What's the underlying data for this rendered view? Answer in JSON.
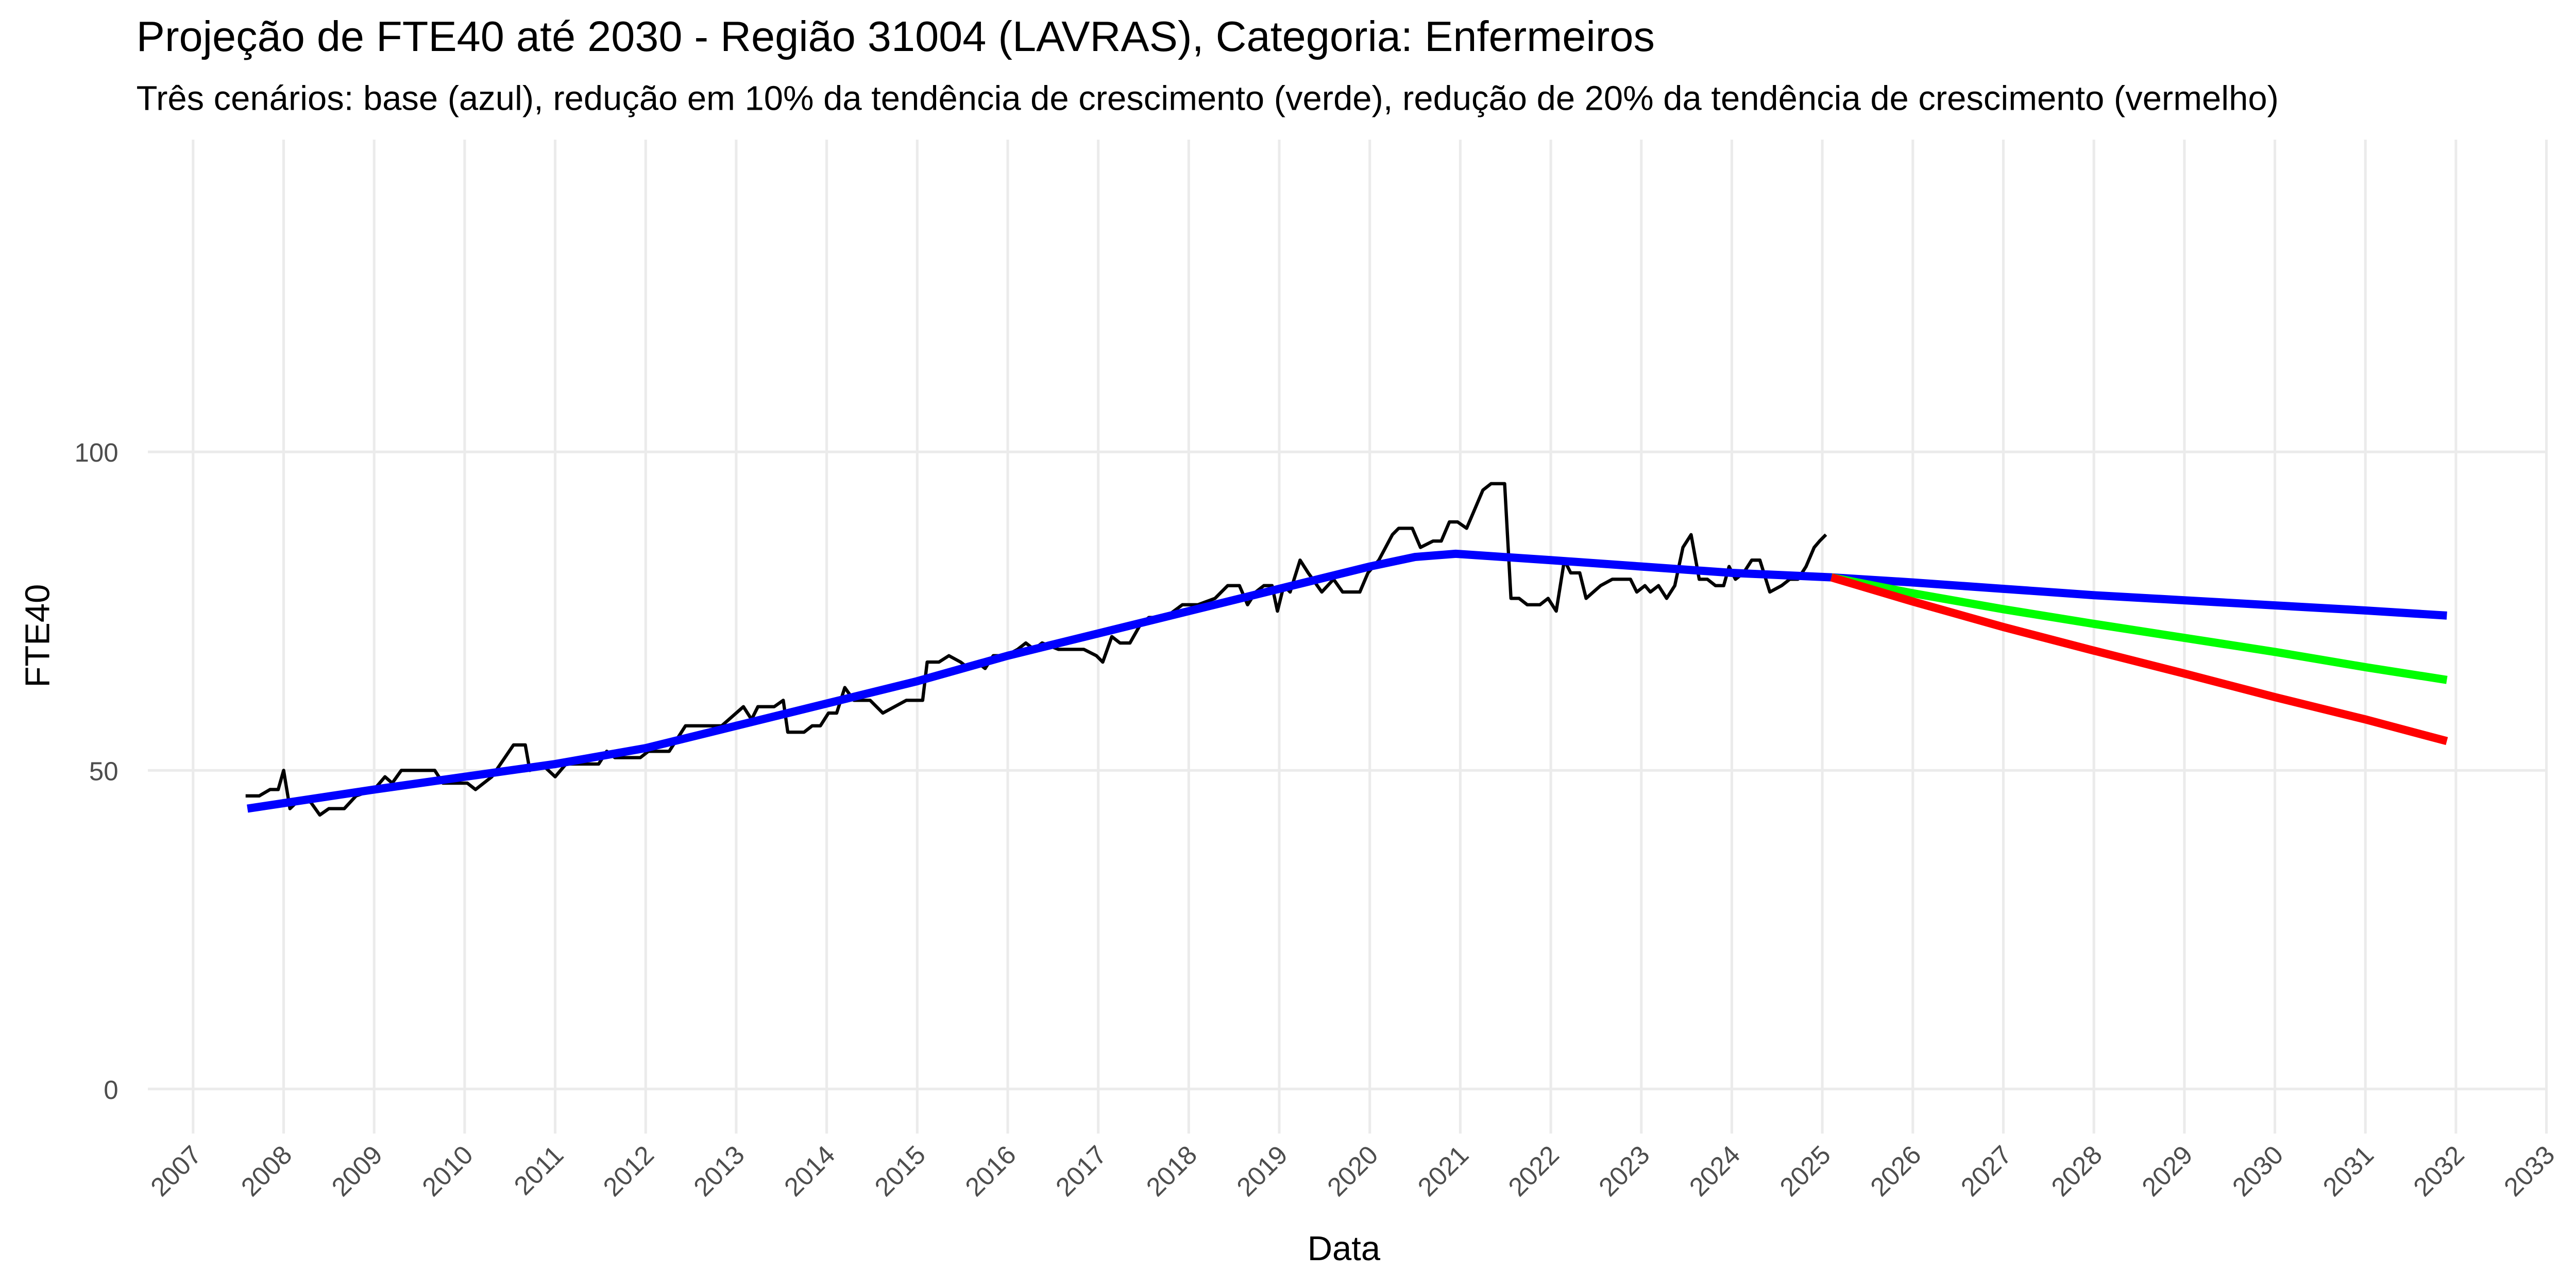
{
  "chart_data": {
    "type": "line",
    "title": "Projeção de FTE40 até 2030 - Região 31004 (LAVRAS), Categoria: Enfermeiros",
    "subtitle": "Três cenários: base (azul), redução em 10% da tendência de crescimento (verde), redução de 20% da tendência de crescimento (vermelho)",
    "x_label": "Data",
    "y_label": "FTE40",
    "xlim": [
      2006.5,
      2033
    ],
    "xticks": [
      2007,
      2008,
      2009,
      2010,
      2011,
      2012,
      2013,
      2014,
      2015,
      2016,
      2017,
      2018,
      2019,
      2020,
      2021,
      2022,
      2023,
      2024,
      2025,
      2026,
      2027,
      2028,
      2029,
      2030,
      2031,
      2032,
      2033
    ],
    "ylim": [
      -7,
      149
    ],
    "yticks": [
      0,
      50,
      100
    ],
    "grid": true,
    "series": [
      {
        "color": "#000000",
        "width": 2,
        "x": [
          2007.58,
          2007.73,
          2007.85,
          2007.94,
          2008.0,
          2008.07,
          2008.18,
          2008.3,
          2008.4,
          2008.5,
          2008.67,
          2008.8,
          2009.0,
          2009.12,
          2009.2,
          2009.3,
          2009.67,
          2009.76,
          2010.03,
          2010.12,
          2010.3,
          2010.54,
          2010.67,
          2010.72,
          2010.85,
          2011.0,
          2011.12,
          2011.48,
          2011.57,
          2011.66,
          2011.94,
          2012.03,
          2012.26,
          2012.44,
          2012.84,
          2013.08,
          2013.17,
          2013.24,
          2013.42,
          2013.52,
          2013.57,
          2013.75,
          2013.84,
          2013.93,
          2014.02,
          2014.11,
          2014.2,
          2014.3,
          2014.48,
          2014.62,
          2014.75,
          2014.88,
          2015.06,
          2015.11,
          2015.24,
          2015.35,
          2015.48,
          2015.57,
          2015.66,
          2015.75,
          2015.84,
          2015.98,
          2016.11,
          2016.2,
          2016.29,
          2016.38,
          2016.56,
          2016.84,
          2016.98,
          2017.05,
          2017.15,
          2017.24,
          2017.35,
          2017.47,
          2017.56,
          2017.74,
          2017.93,
          2018.1,
          2018.29,
          2018.43,
          2018.56,
          2018.65,
          2018.74,
          2018.83,
          2018.92,
          2018.98,
          2019.05,
          2019.12,
          2019.23,
          2019.32,
          2019.47,
          2019.6,
          2019.7,
          2019.89,
          2019.98,
          2020.1,
          2020.25,
          2020.32,
          2020.47,
          2020.56,
          2020.7,
          2020.79,
          2020.88,
          2020.97,
          2021.07,
          2021.16,
          2021.25,
          2021.34,
          2021.49,
          2021.56,
          2021.65,
          2021.74,
          2021.88,
          2021.97,
          2022.06,
          2022.15,
          2022.22,
          2022.32,
          2022.39,
          2022.55,
          2022.68,
          2022.88,
          2022.95,
          2023.04,
          2023.1,
          2023.19,
          2023.28,
          2023.37,
          2023.46,
          2023.55,
          2023.64,
          2023.73,
          2023.82,
          2023.91,
          2023.97,
          2024.04,
          2024.13,
          2024.22,
          2024.31,
          2024.42,
          2024.55,
          2024.64,
          2024.73,
          2024.82,
          2024.91,
          2024.97,
          2025.04
        ],
        "values": [
          46,
          46,
          47,
          47,
          50,
          44,
          45.5,
          45,
          43,
          44,
          44,
          46,
          47,
          49,
          48,
          50,
          50,
          48,
          48,
          47,
          49,
          54,
          54,
          50,
          51,
          49,
          51,
          51,
          53,
          52,
          52,
          53,
          53,
          57,
          57,
          60,
          58,
          60,
          60,
          61,
          56,
          56,
          57,
          57,
          59,
          59,
          63,
          61,
          61,
          59,
          60,
          61,
          61,
          67,
          67,
          68,
          67,
          66,
          67,
          66,
          68,
          68,
          69,
          70,
          69,
          70,
          69,
          69,
          68,
          67,
          71,
          70,
          70,
          73,
          74,
          74,
          76,
          76,
          77,
          79,
          79,
          76,
          78,
          79,
          79,
          75,
          79,
          78,
          83,
          81,
          78,
          80,
          78,
          78,
          81,
          83,
          87,
          88,
          88,
          85,
          86,
          86,
          89,
          89,
          88,
          91,
          94,
          95,
          95,
          77,
          77,
          76,
          76,
          77,
          75,
          83,
          81,
          81,
          77,
          79,
          80,
          80,
          78,
          79,
          78,
          79,
          77,
          79,
          85,
          87,
          80,
          80,
          79,
          79,
          82,
          80,
          81,
          83,
          83,
          78,
          79,
          80,
          80,
          82,
          85,
          86,
          87
        ]
      },
      {
        "color": "#0000ff",
        "width": 5,
        "x": [
          2007.6,
          2009,
          2011,
          2012,
          2013,
          2014,
          2015,
          2016,
          2017,
          2018,
          2019,
          2020,
          2020.5,
          2020.95,
          2022,
          2023,
          2024,
          2025.1,
          2026,
          2027,
          2028,
          2029,
          2030,
          2031,
          2031.9
        ],
        "values": [
          44,
          47,
          51,
          53.5,
          57,
          60.5,
          64,
          68,
          71.5,
          75,
          78.5,
          82,
          83.5,
          84,
          83,
          82,
          81,
          80.3,
          79.5,
          78.5,
          77.5,
          76.7,
          75.9,
          75.1,
          74.3
        ]
      },
      {
        "color": "#00ff00",
        "width": 5,
        "x": [
          2025.1,
          2026,
          2027,
          2028,
          2029,
          2030,
          2031,
          2031.9
        ],
        "values": [
          80.3,
          77.8,
          75.3,
          73.0,
          70.8,
          68.6,
          66.2,
          64.2
        ]
      },
      {
        "color": "#ff0000",
        "width": 5,
        "x": [
          2025.1,
          2026,
          2027,
          2028,
          2029,
          2030,
          2031,
          2031.9
        ],
        "values": [
          80.3,
          76.5,
          72.5,
          68.8,
          65.2,
          61.5,
          58,
          54.6
        ]
      }
    ]
  }
}
